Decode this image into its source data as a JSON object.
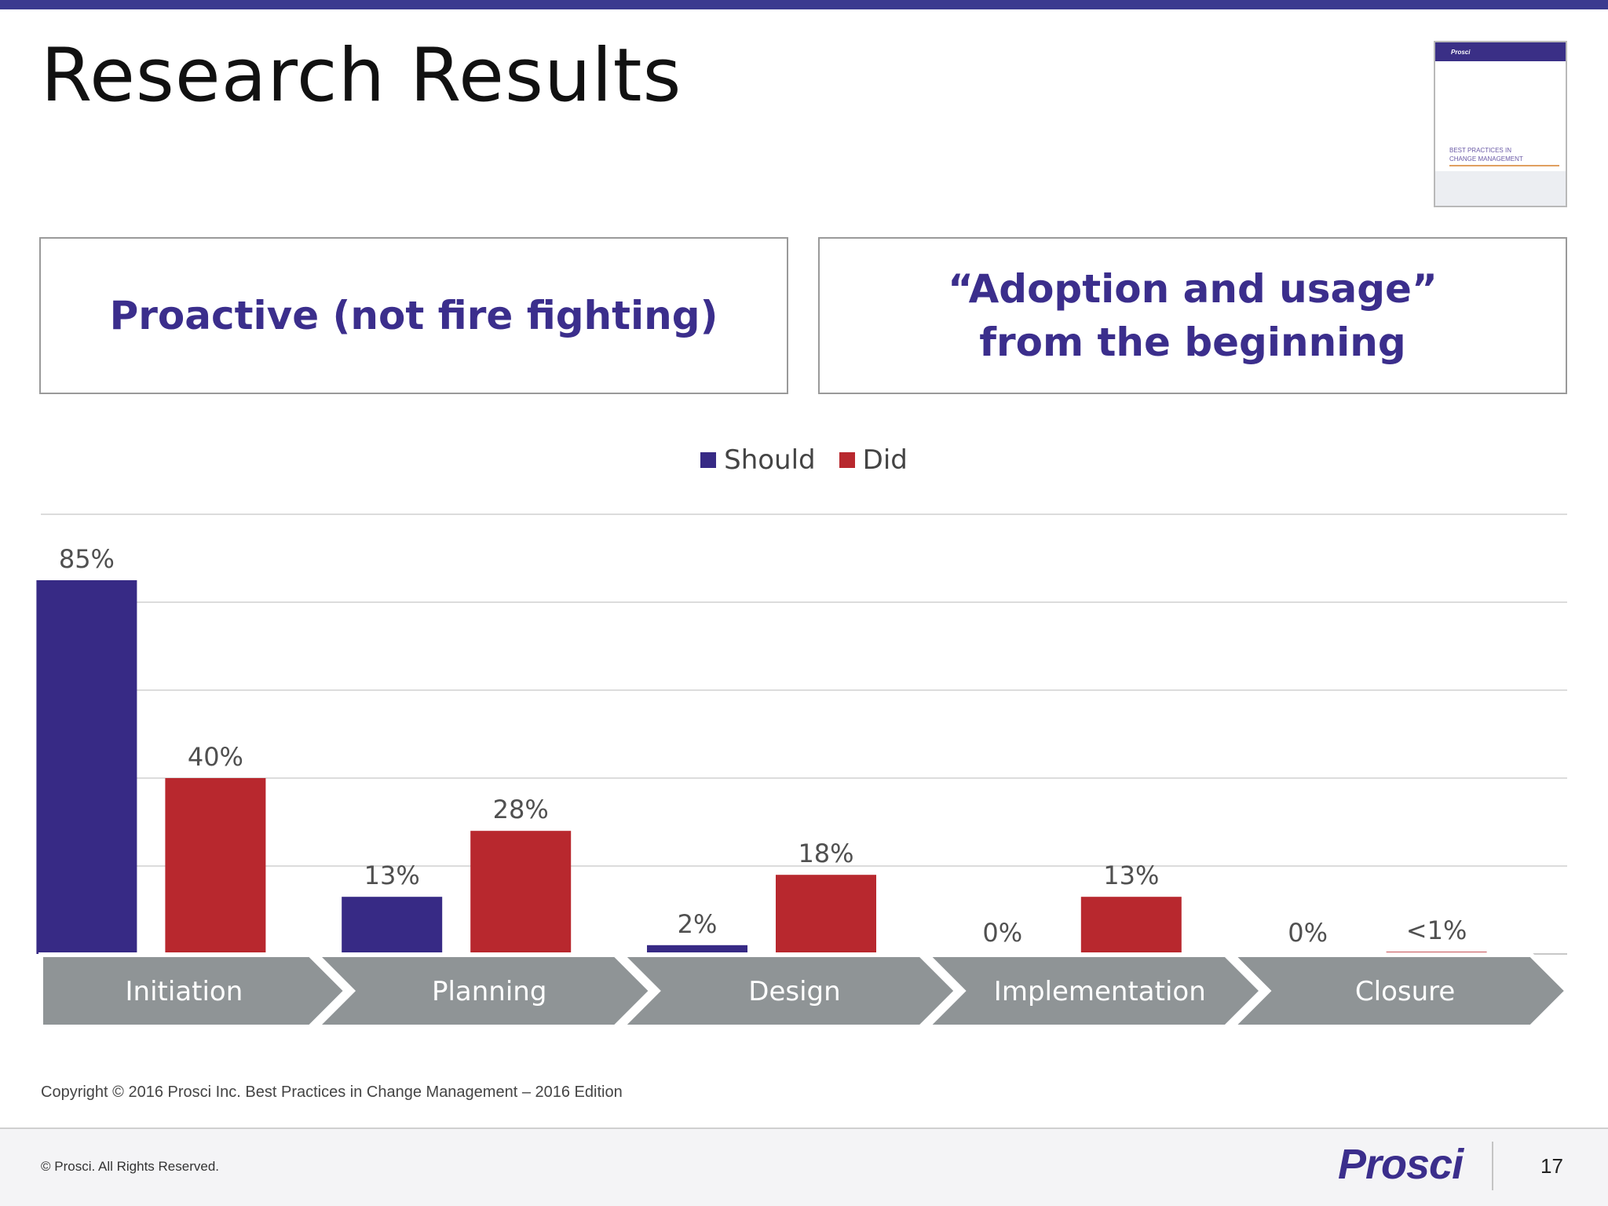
{
  "slide": {
    "title": "Research Results",
    "callouts": [
      "Proactive (not fire fighting)",
      "“Adoption and usage”\nfrom the beginning"
    ],
    "source": "Copyright © 2016 Prosci Inc. Best Practices in Change Management – 2016 Edition",
    "thumbnail": {
      "logo": "Prosci",
      "title": "BEST PRACTICES IN\nCHANGE MANAGEMENT"
    }
  },
  "footer": {
    "copyright": "© Prosci. All Rights Reserved.",
    "logo": "Prosci",
    "page_number": "17"
  },
  "colors": {
    "should": "#372a85",
    "did": "#b8282e",
    "arrow": "#8f9496",
    "accent": "#3b2e8c"
  },
  "chart_data": {
    "type": "bar",
    "categories": [
      "Initiation",
      "Planning",
      "Design",
      "Implementation",
      "Closure"
    ],
    "series": [
      {
        "name": "Should",
        "values": [
          85,
          13,
          2,
          0,
          0
        ],
        "labels": [
          "85%",
          "13%",
          "2%",
          "0%",
          "0%"
        ]
      },
      {
        "name": "Did",
        "values": [
          40,
          28,
          18,
          13,
          0.5
        ],
        "labels": [
          "40%",
          "28%",
          "18%",
          "13%",
          "<1%"
        ]
      }
    ],
    "ylim": [
      0,
      100
    ],
    "grid": true,
    "legend": "top-center"
  }
}
